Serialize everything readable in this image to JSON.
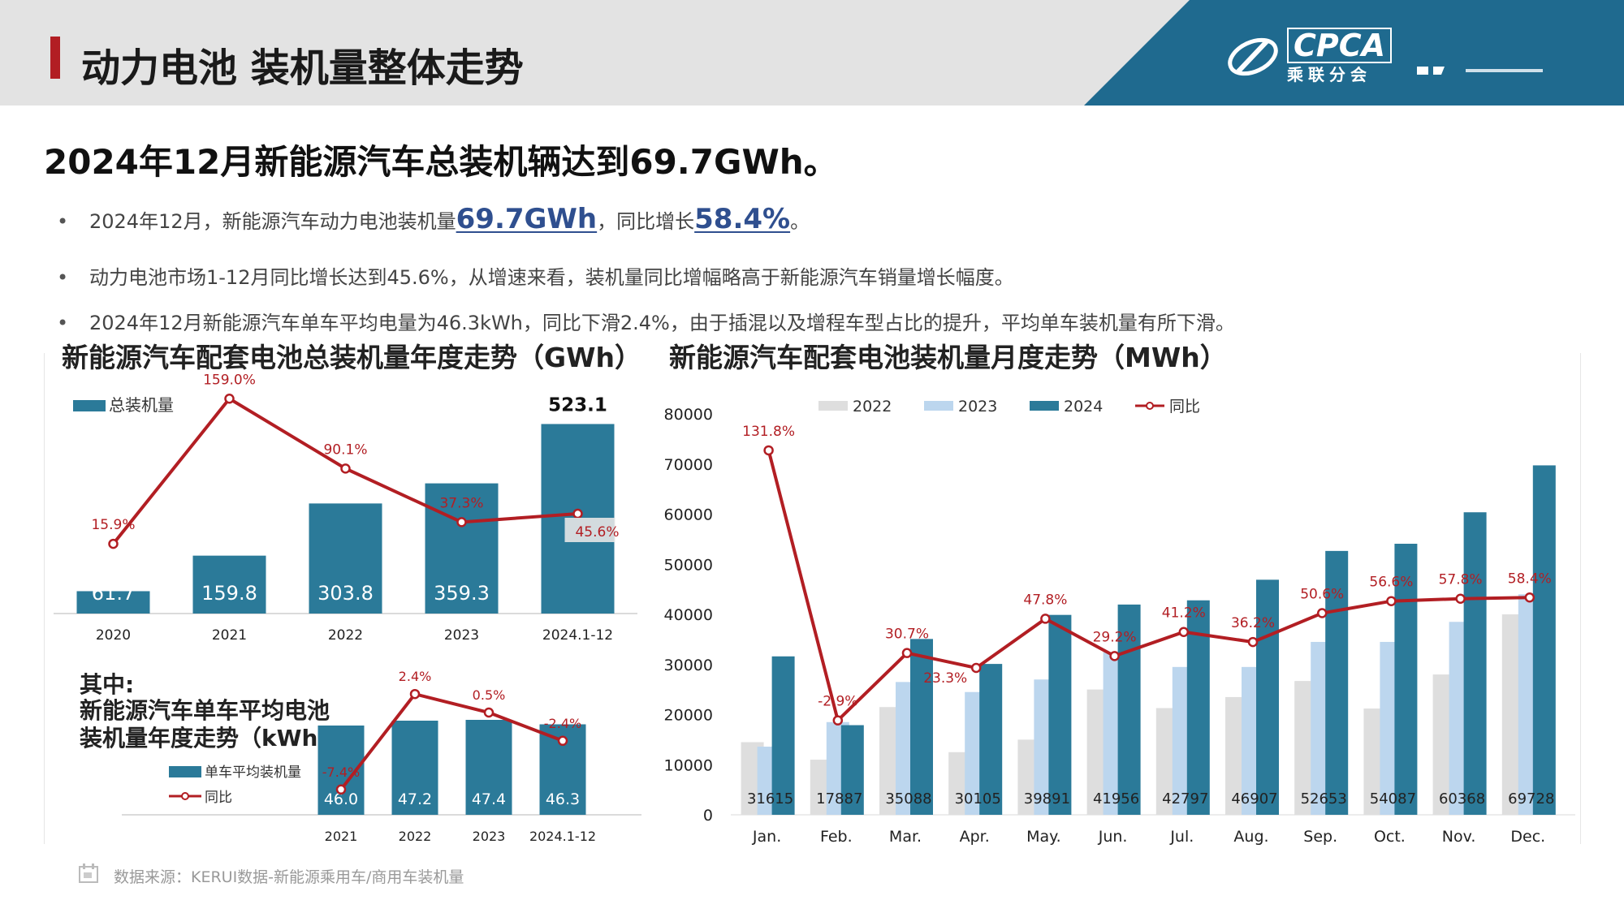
{
  "header": {
    "title": "动力电池 装机量整体走势",
    "logo_text": "CPCA",
    "logo_sub": "乘联分会",
    "brand_color": "#1f6a8f",
    "accent_color": "#b21e23"
  },
  "headline": "2024年12月新能源汽车总装机辆达到69.7GWh。",
  "bullets": [
    {
      "pre": "2024年12月，新能源汽车动力电池装机量",
      "hl1": "69.7GWh",
      "mid": "，同比增长",
      "hl2": "58.4%",
      "post": "。"
    },
    {
      "text": "动力电池市场1-12月同比增长达到45.6%，从增速来看，装机量同比增幅略高于新能源汽车销量增长幅度。"
    },
    {
      "text": "2024年12月新能源汽车单车平均电量为46.3kWh，同比下滑2.4%，由于插混以及增程车型占比的提升，平均单车装机量有所下滑。"
    }
  ],
  "source": "数据来源：KERUI数据-新能源乘用车/商用车装机量",
  "chart_data": [
    {
      "type": "bar",
      "title": "新能源汽车配套电池总装机量年度走势（GWh）",
      "categories": [
        "2020",
        "2021",
        "2022",
        "2023",
        "2024.1-12"
      ],
      "series": [
        {
          "name": "总装机量",
          "values": [
            61.7,
            159.8,
            303.8,
            359.3,
            523.1
          ],
          "color": "#2b7a99"
        }
      ],
      "line": {
        "values": [
          15.9,
          159.0,
          90.1,
          37.3,
          45.6
        ],
        "labels": [
          "15.9%",
          "159.0%",
          "90.1%",
          "37.3%",
          "45.6%"
        ],
        "color": "#b21e23"
      },
      "value_labels": [
        "61.7",
        "159.8",
        "303.8",
        "359.3",
        "523.1"
      ],
      "ylim": [
        0,
        560
      ],
      "legend": "top-left"
    },
    {
      "type": "bar",
      "title": "新能源汽车单车平均电池装机量年度走势（kWh）",
      "title_prefix": "其中:",
      "title_lines": [
        "新能源汽车单车平均电池",
        "装机量年度走势（kWh）"
      ],
      "categories": [
        "2021",
        "2022",
        "2023",
        "2024.1-12"
      ],
      "series": [
        {
          "name": "单车平均装机量",
          "values": [
            46.0,
            47.2,
            47.4,
            46.3
          ],
          "color": "#2b7a99"
        }
      ],
      "line": {
        "name": "同比",
        "values": [
          -7.4,
          2.4,
          0.5,
          -2.4
        ],
        "labels": [
          "-7.4%",
          "2.4%",
          "0.5%",
          "-2.4%"
        ],
        "color": "#b21e23"
      },
      "value_labels": [
        "46.0",
        "47.2",
        "47.4",
        "46.3"
      ],
      "legend": "bottom-left"
    },
    {
      "type": "bar",
      "title": "新能源汽车配套电池装机量月度走势（MWh）",
      "categories": [
        "Jan.",
        "Feb.",
        "Mar.",
        "Apr.",
        "May.",
        "Jun.",
        "Jul.",
        "Aug.",
        "Sep.",
        "Oct.",
        "Nov.",
        "Dec."
      ],
      "series": [
        {
          "name": "2022",
          "values": [
            14500,
            11000,
            21500,
            12500,
            15000,
            25000,
            21300,
            23500,
            26700,
            21200,
            28000,
            40000
          ],
          "color": "#dedede"
        },
        {
          "name": "2023",
          "values": [
            13600,
            18500,
            26500,
            24500,
            27000,
            32500,
            29500,
            29500,
            34500,
            34500,
            38500,
            44000
          ],
          "color": "#bcd6ee"
        },
        {
          "name": "2024",
          "values": [
            31615,
            17887,
            35088,
            30105,
            39891,
            41956,
            42797,
            46907,
            52653,
            54087,
            60368,
            69728
          ],
          "color": "#2b7a99"
        }
      ],
      "line": {
        "name": "同比",
        "values": [
          131.8,
          -2.9,
          30.7,
          23.3,
          47.8,
          29.2,
          41.2,
          36.2,
          50.6,
          56.6,
          57.8,
          58.4
        ],
        "labels": [
          "131.8%",
          "-2.9%",
          "30.7%",
          "23.3%",
          "47.8%",
          "29.2%",
          "41.2%",
          "36.2%",
          "50.6%",
          "56.6%",
          "57.8%",
          "58.4%"
        ],
        "color": "#b21e23"
      },
      "value_labels": [
        "31615",
        "17887",
        "35088",
        "30105",
        "39891",
        "41956",
        "42797",
        "46907",
        "52653",
        "54087",
        "60368",
        "69728"
      ],
      "yticks": [
        "0",
        "10000",
        "20000",
        "30000",
        "40000",
        "50000",
        "60000",
        "70000",
        "80000"
      ],
      "ylim": [
        0,
        80000
      ],
      "legend": "top"
    }
  ]
}
